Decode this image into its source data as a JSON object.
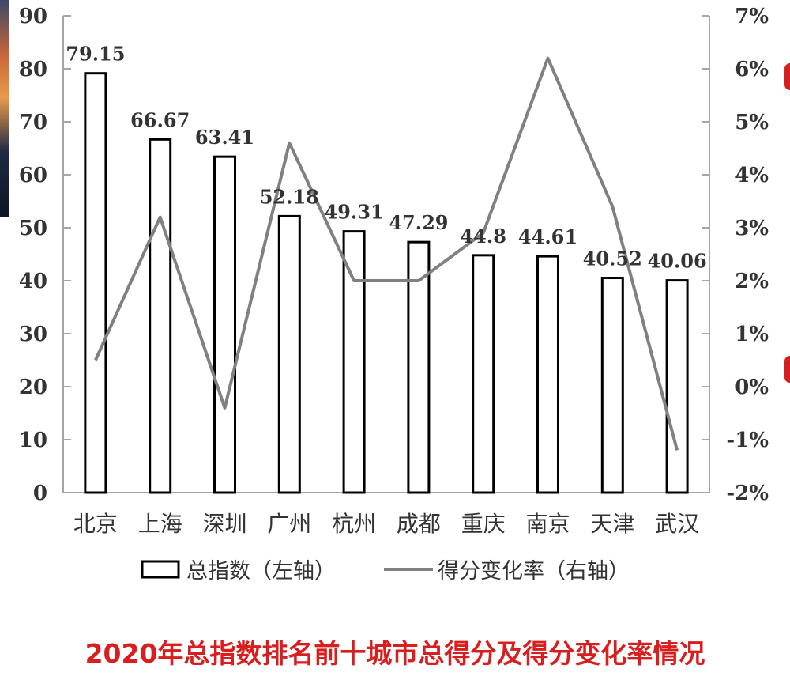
{
  "chart_data": {
    "type": "bar",
    "categories": [
      "北京",
      "上海",
      "深圳",
      "广州",
      "杭州",
      "成都",
      "重庆",
      "南京",
      "天津",
      "武汉"
    ],
    "series": [
      {
        "name": "总指数（左轴）",
        "type": "bar",
        "axis": "left",
        "values": [
          79.15,
          66.67,
          63.41,
          52.18,
          49.31,
          47.29,
          44.8,
          44.61,
          40.52,
          40.06
        ],
        "labels": [
          "79.15",
          "66.67",
          "63.41",
          "52.18",
          "49.31",
          "47.29",
          "44.8",
          "44.61",
          "40.52",
          "40.06"
        ]
      },
      {
        "name": "得分变化率（右轴）",
        "type": "line",
        "axis": "right",
        "values": [
          0.5,
          3.2,
          -0.4,
          4.6,
          2.0,
          2.0,
          2.9,
          6.2,
          3.4,
          -1.2
        ]
      }
    ],
    "y_left": {
      "min": 0,
      "max": 90,
      "ticks": [
        "0",
        "10",
        "20",
        "30",
        "40",
        "50",
        "60",
        "70",
        "80",
        "90"
      ]
    },
    "y_right": {
      "min": -2,
      "max": 7,
      "unit": "%",
      "ticks": [
        "-2%",
        "-1%",
        "0%",
        "1%",
        "2%",
        "3%",
        "4%",
        "5%",
        "6%",
        "7%"
      ]
    },
    "grid": false,
    "legend_position": "bottom",
    "colors": {
      "bar_fill": "#ffffff",
      "bar_stroke": "#000000",
      "line": "#808080",
      "axis": "#a6a6a6",
      "text": "#333333"
    }
  },
  "caption": "2020年总指数排名前十城市总得分及得分变化率情况",
  "caption_color": "#d81e1e"
}
